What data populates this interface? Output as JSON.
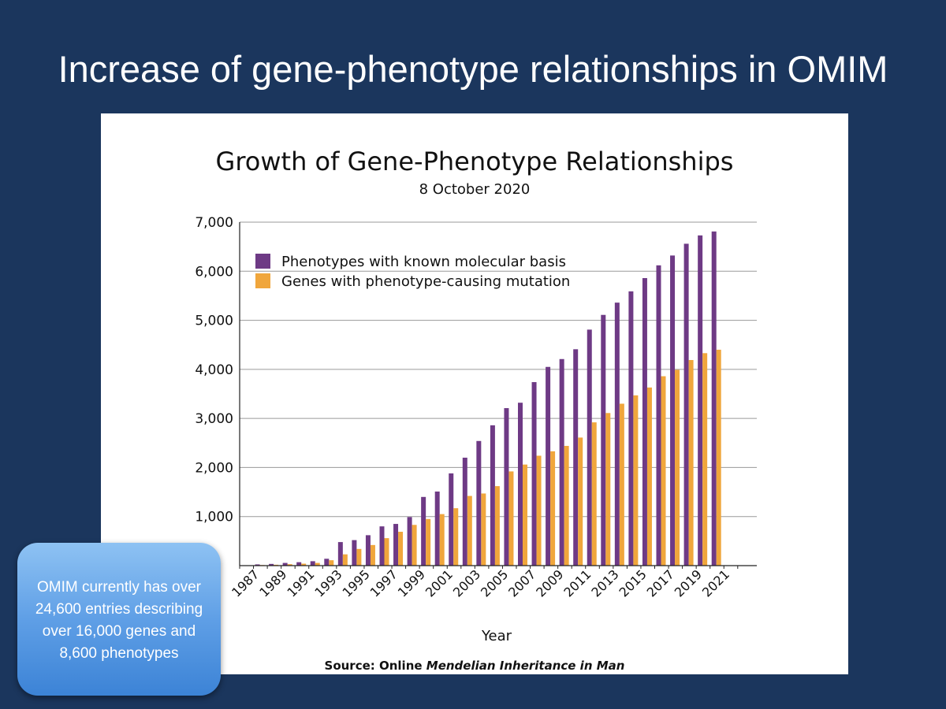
{
  "slide": {
    "title": "Increase of gene-phenotype relationships in OMIM",
    "callout": "OMIM currently has over 24,600 entries describing over 16,000 genes and 8,600 phenotypes"
  },
  "chart_data": {
    "type": "bar",
    "title": "Growth of Gene-Phenotype Relationships",
    "subtitle": "8 October 2020",
    "xlabel": "Year",
    "ylabel": "",
    "ylim": [
      0,
      7000
    ],
    "yticks": [
      0,
      1000,
      2000,
      3000,
      4000,
      5000,
      6000,
      7000
    ],
    "ytick_labels": [
      "",
      "1,000",
      "2,000",
      "3,000",
      "4,000",
      "5,000",
      "6,000",
      "7,000"
    ],
    "xtick_labels": [
      "1987",
      "1989",
      "1991",
      "1993",
      "1995",
      "1997",
      "1999",
      "2001",
      "2003",
      "2005",
      "2007",
      "2009",
      "2011",
      "2013",
      "2015",
      "2017",
      "2019",
      "2021"
    ],
    "grid": true,
    "legend_position": "top-left",
    "source_prefix": "Source:  Online ",
    "source_italic": "Mendelian Inheritance in Man",
    "categories": [
      "1986",
      "1987",
      "1988",
      "1989",
      "1990",
      "1991",
      "1992",
      "1993",
      "1994",
      "1995",
      "1996",
      "1997",
      "1998",
      "1999",
      "2000",
      "2001",
      "2002",
      "2003",
      "2004",
      "2005",
      "2006",
      "2007",
      "2008",
      "2009",
      "2010",
      "2011",
      "2012",
      "2013",
      "2014",
      "2015",
      "2016",
      "2017",
      "2018",
      "2019",
      "2020"
    ],
    "series": [
      {
        "name": "Phenotypes with known molecular basis",
        "color": "#6e3a85",
        "values": [
          5,
          25,
          35,
          55,
          70,
          90,
          140,
          480,
          520,
          620,
          800,
          850,
          990,
          1400,
          1510,
          1880,
          2200,
          2540,
          2860,
          3210,
          3320,
          3740,
          4050,
          4210,
          4410,
          4810,
          5110,
          5360,
          5590,
          5860,
          6120,
          6320,
          6560,
          6730,
          6810
        ]
      },
      {
        "name": "Genes with phenotype-causing mutation",
        "color": "#f0a63c",
        "values": [
          3,
          12,
          18,
          30,
          40,
          55,
          110,
          230,
          340,
          420,
          560,
          690,
          830,
          950,
          1050,
          1170,
          1420,
          1470,
          1620,
          1920,
          2060,
          2240,
          2330,
          2440,
          2610,
          2920,
          3110,
          3300,
          3470,
          3630,
          3860,
          3990,
          4190,
          4330,
          4400
        ]
      }
    ]
  }
}
